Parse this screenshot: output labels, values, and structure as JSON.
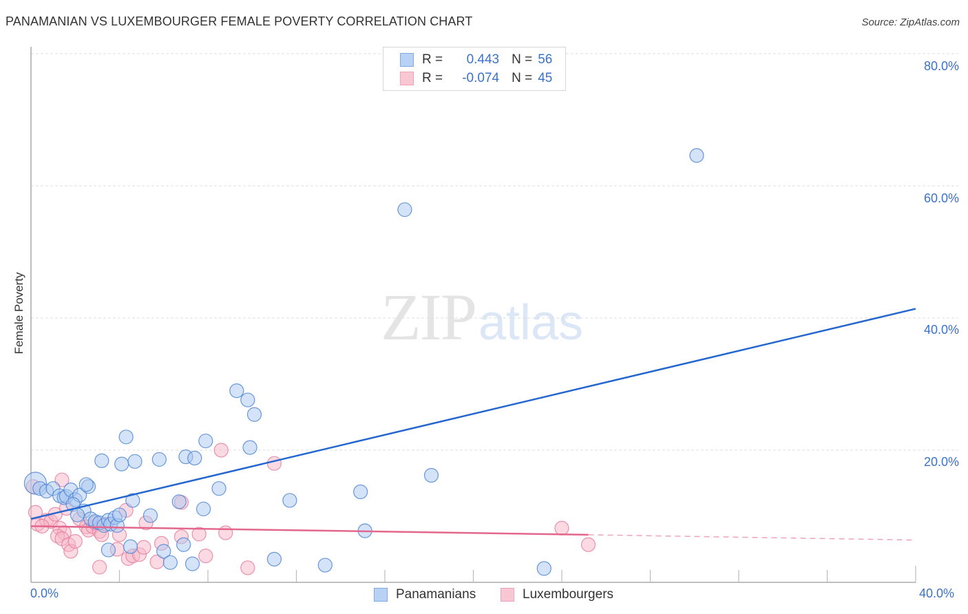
{
  "header": {
    "title": "PANAMANIAN VS LUXEMBOURGER FEMALE POVERTY CORRELATION CHART",
    "source": "Source: ZipAtlas.com"
  },
  "axes": {
    "ylabel": "Female Poverty",
    "y_ticks": [
      "80.0%",
      "60.0%",
      "40.0%",
      "20.0%"
    ],
    "x_ticks": [
      "0.0%",
      "40.0%"
    ]
  },
  "legend": {
    "rows": [
      {
        "r_label": "R =",
        "r_value": "0.443",
        "n_label": "N =",
        "n_value": "56",
        "color": "#a9c8f0"
      },
      {
        "r_label": "R =",
        "r_value": "-0.074",
        "n_label": "N =",
        "n_value": "45",
        "color": "#f7b6c8"
      }
    ]
  },
  "bottom_legend": {
    "items": [
      {
        "label": "Panamanians",
        "color": "#b7d2f5"
      },
      {
        "label": "Luxembourgers",
        "color": "#f9c6d4"
      }
    ]
  },
  "watermark": {
    "zip": "ZIP",
    "atlas": "atlas"
  },
  "colors": {
    "blue_fill": "#a9c8f0",
    "blue_stroke": "#4f86d6",
    "blue_line": "#2466d0",
    "pink_fill": "#f7b6c8",
    "pink_stroke": "#e6809e",
    "pink_line": "#e3668d",
    "tick_text": "#3a72c9",
    "grid": "#dddddd"
  },
  "chart_data": {
    "type": "scatter",
    "title": "PANAMANIAN VS LUXEMBOURGER FEMALE POVERTY CORRELATION CHART",
    "xlabel": "",
    "ylabel": "Female Poverty",
    "xlim": [
      0,
      40
    ],
    "ylim": [
      0,
      80
    ],
    "x_ticks": [
      0,
      4,
      8,
      12,
      16,
      20,
      24,
      28,
      32,
      36,
      40
    ],
    "y_gridlines": [
      20,
      40,
      60,
      80
    ],
    "grid": true,
    "legend_position": "top-center",
    "series": [
      {
        "name": "Panamanians",
        "R": 0.443,
        "N": 56,
        "trend": {
          "x": [
            0,
            40
          ],
          "y": [
            9.6,
            41.4
          ]
        },
        "points": [
          [
            0.2,
            15.0
          ],
          [
            0.4,
            14.2
          ],
          [
            0.7,
            13.8
          ],
          [
            1.0,
            14.2
          ],
          [
            1.3,
            13.1
          ],
          [
            1.5,
            12.8
          ],
          [
            1.6,
            13.0
          ],
          [
            1.8,
            14.0
          ],
          [
            2.0,
            12.5
          ],
          [
            2.2,
            13.2
          ],
          [
            2.6,
            14.5
          ],
          [
            2.5,
            14.8
          ],
          [
            1.9,
            11.8
          ],
          [
            2.4,
            10.8
          ],
          [
            2.1,
            10.2
          ],
          [
            2.7,
            9.6
          ],
          [
            2.9,
            9.2
          ],
          [
            3.1,
            9.0
          ],
          [
            3.3,
            8.6
          ],
          [
            3.5,
            9.4
          ],
          [
            3.6,
            8.8
          ],
          [
            3.8,
            9.8
          ],
          [
            3.9,
            8.6
          ],
          [
            4.0,
            10.2
          ],
          [
            3.2,
            18.4
          ],
          [
            4.1,
            17.9
          ],
          [
            4.3,
            22.0
          ],
          [
            4.7,
            18.3
          ],
          [
            5.8,
            18.6
          ],
          [
            7.0,
            19.0
          ],
          [
            7.4,
            18.8
          ],
          [
            7.9,
            21.4
          ],
          [
            4.6,
            12.4
          ],
          [
            5.4,
            10.1
          ],
          [
            6.7,
            12.2
          ],
          [
            7.8,
            11.1
          ],
          [
            8.5,
            14.2
          ],
          [
            9.3,
            29.0
          ],
          [
            9.8,
            27.6
          ],
          [
            10.1,
            25.4
          ],
          [
            9.9,
            20.4
          ],
          [
            11.7,
            12.4
          ],
          [
            14.9,
            13.7
          ],
          [
            18.1,
            16.2
          ],
          [
            15.1,
            7.8
          ],
          [
            11.0,
            3.5
          ],
          [
            13.3,
            2.6
          ],
          [
            3.5,
            4.9
          ],
          [
            4.5,
            5.4
          ],
          [
            6.0,
            4.7
          ],
          [
            6.3,
            3.0
          ],
          [
            6.9,
            5.7
          ],
          [
            7.3,
            2.8
          ],
          [
            23.2,
            2.1
          ],
          [
            16.9,
            56.4
          ],
          [
            30.1,
            64.6
          ]
        ]
      },
      {
        "name": "Luxembourgers",
        "R": -0.074,
        "N": 45,
        "trend": {
          "x": [
            0,
            25.2
          ],
          "y": [
            8.5,
            7.2
          ],
          "dashed_extension": {
            "x": [
              25.2,
              40
            ],
            "y": [
              7.2,
              6.4
            ]
          }
        },
        "points": [
          [
            0.1,
            14.5
          ],
          [
            0.2,
            10.6
          ],
          [
            0.3,
            8.8
          ],
          [
            0.7,
            9.4
          ],
          [
            0.9,
            9.2
          ],
          [
            1.1,
            10.3
          ],
          [
            1.3,
            8.2
          ],
          [
            1.5,
            7.5
          ],
          [
            1.2,
            7.0
          ],
          [
            1.4,
            6.6
          ],
          [
            1.7,
            5.7
          ],
          [
            1.8,
            4.7
          ],
          [
            2.0,
            6.2
          ],
          [
            1.4,
            15.5
          ],
          [
            1.6,
            11.2
          ],
          [
            2.2,
            9.6
          ],
          [
            2.5,
            8.4
          ],
          [
            2.6,
            7.9
          ],
          [
            2.8,
            8.4
          ],
          [
            3.1,
            7.7
          ],
          [
            3.2,
            7.2
          ],
          [
            3.4,
            8.8
          ],
          [
            3.9,
            5.0
          ],
          [
            4.0,
            7.2
          ],
          [
            4.3,
            10.9
          ],
          [
            4.4,
            3.6
          ],
          [
            4.6,
            4.0
          ],
          [
            4.9,
            4.2
          ],
          [
            5.1,
            5.3
          ],
          [
            5.2,
            9.0
          ],
          [
            5.7,
            3.1
          ],
          [
            5.9,
            5.9
          ],
          [
            6.8,
            12.1
          ],
          [
            6.8,
            6.9
          ],
          [
            7.6,
            7.3
          ],
          [
            7.9,
            4.0
          ],
          [
            8.6,
            20.0
          ],
          [
            8.8,
            7.5
          ],
          [
            9.8,
            2.2
          ],
          [
            11.0,
            18.0
          ],
          [
            3.1,
            2.3
          ],
          [
            24.0,
            8.2
          ],
          [
            25.2,
            5.7
          ],
          [
            0.5,
            8.5
          ],
          [
            2.9,
            9.0
          ]
        ]
      }
    ]
  }
}
